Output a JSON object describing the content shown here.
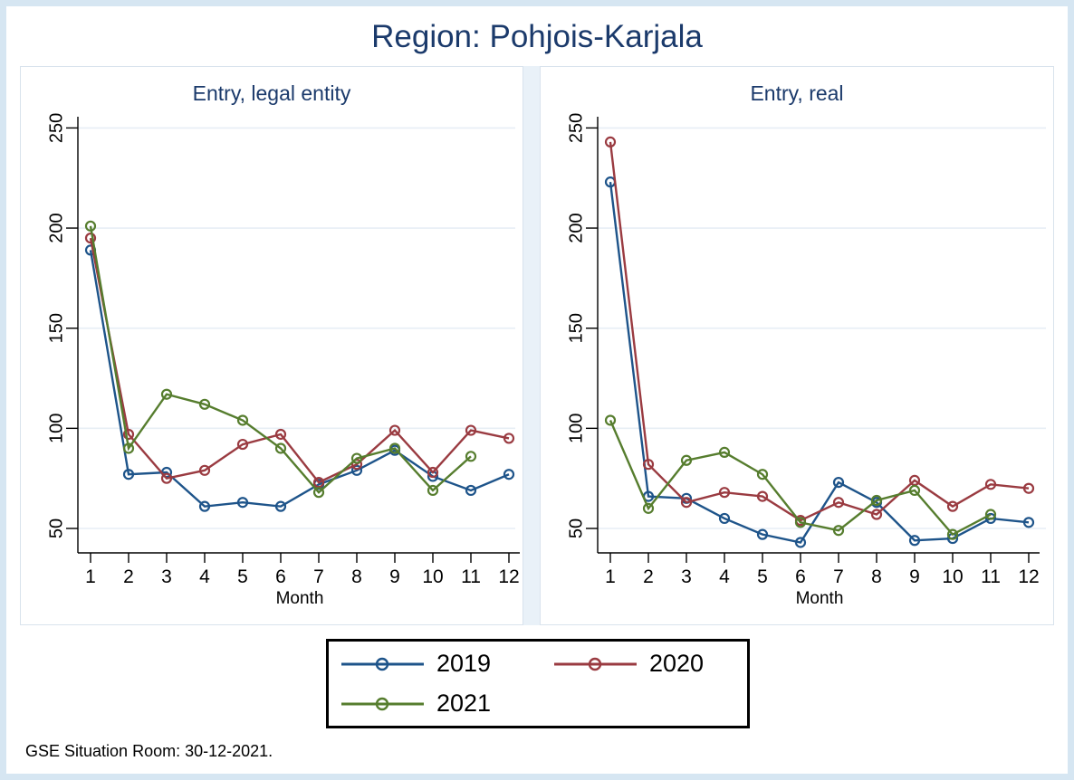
{
  "page": {
    "title": "Region: Pohjois-Karjala"
  },
  "colors": {
    "title": "#1b3a6b",
    "axis": "#000000",
    "grid": "#e7eef5",
    "panel_border": "#d9e3ed",
    "frame": "#d6e6f2",
    "series_2019": "#1e548a",
    "series_2020": "#9a3b41",
    "series_2021": "#567d2e"
  },
  "legend": {
    "entries": [
      {
        "label": "2019",
        "color": "#1e548a"
      },
      {
        "label": "2020",
        "color": "#9a3b41"
      },
      {
        "label": "2021",
        "color": "#567d2e"
      }
    ]
  },
  "footer": {
    "note": "GSE Situation Room: 30-12-2021."
  },
  "chart_data": [
    {
      "type": "line",
      "title": "Entry, legal entity",
      "xlabel": "Month",
      "x": [
        1,
        2,
        3,
        4,
        5,
        6,
        7,
        8,
        9,
        10,
        11,
        12
      ],
      "yticks": [
        50,
        100,
        150,
        200,
        250
      ],
      "ylim": [
        40,
        260
      ],
      "grid": true,
      "series": [
        {
          "name": "2019",
          "color": "#1e548a",
          "values": [
            189,
            77,
            78,
            61,
            63,
            61,
            72,
            79,
            89,
            76,
            69,
            77
          ]
        },
        {
          "name": "2020",
          "color": "#9a3b41",
          "values": [
            195,
            97,
            75,
            79,
            92,
            97,
            73,
            82,
            99,
            78,
            99,
            95
          ]
        },
        {
          "name": "2021",
          "color": "#567d2e",
          "values": [
            201,
            90,
            117,
            112,
            104,
            90,
            68,
            85,
            90,
            69,
            86
          ]
        }
      ]
    },
    {
      "type": "line",
      "title": "Entry, real",
      "xlabel": "Month",
      "x": [
        1,
        2,
        3,
        4,
        5,
        6,
        7,
        8,
        9,
        10,
        11,
        12
      ],
      "yticks": [
        50,
        100,
        150,
        200,
        250
      ],
      "ylim": [
        40,
        260
      ],
      "grid": true,
      "series": [
        {
          "name": "2019",
          "color": "#1e548a",
          "values": [
            223,
            66,
            65,
            55,
            47,
            43,
            73,
            63,
            44,
            45,
            55,
            53
          ]
        },
        {
          "name": "2020",
          "color": "#9a3b41",
          "values": [
            243,
            82,
            63,
            68,
            66,
            54,
            63,
            57,
            74,
            61,
            72,
            70
          ]
        },
        {
          "name": "2021",
          "color": "#567d2e",
          "values": [
            104,
            60,
            84,
            88,
            77,
            53,
            49,
            64,
            69,
            47,
            57
          ]
        }
      ]
    }
  ]
}
